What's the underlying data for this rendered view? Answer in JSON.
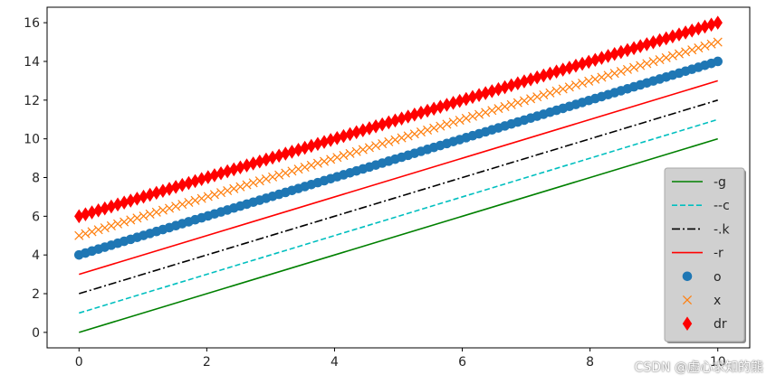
{
  "chart_data": {
    "type": "line",
    "x_range": [
      0,
      10
    ],
    "n_points": 100,
    "xlim": [
      -0.5,
      10.5
    ],
    "ylim": [
      -0.8,
      16.8
    ],
    "xticks": [
      0,
      2,
      4,
      6,
      8,
      10
    ],
    "yticks": [
      0,
      2,
      4,
      6,
      8,
      10,
      12,
      14,
      16
    ],
    "grid": false,
    "legend_position": "bottom-right",
    "series": [
      {
        "name": "-g",
        "intercept": 0,
        "slope": 1,
        "color": "#008000",
        "style": "solid",
        "marker": "none"
      },
      {
        "name": "--c",
        "intercept": 1,
        "slope": 1,
        "color": "#00bfbf",
        "style": "dashed",
        "marker": "none"
      },
      {
        "name": "-.k",
        "intercept": 2,
        "slope": 1,
        "color": "#000000",
        "style": "dashdot",
        "marker": "none"
      },
      {
        "name": "-r",
        "intercept": 3,
        "slope": 1,
        "color": "#ff0000",
        "style": "solid",
        "marker": "none"
      },
      {
        "name": "o",
        "intercept": 4,
        "slope": 1,
        "color": "#1f77b4",
        "style": "none",
        "marker": "circle"
      },
      {
        "name": "x",
        "intercept": 5,
        "slope": 1,
        "color": "#ff7f0e",
        "style": "none",
        "marker": "x"
      },
      {
        "name": "dr",
        "intercept": 6,
        "slope": 1,
        "color": "#ff0000",
        "style": "none",
        "marker": "diamond"
      }
    ]
  },
  "watermark": "CSDN @虚心求知的熊"
}
